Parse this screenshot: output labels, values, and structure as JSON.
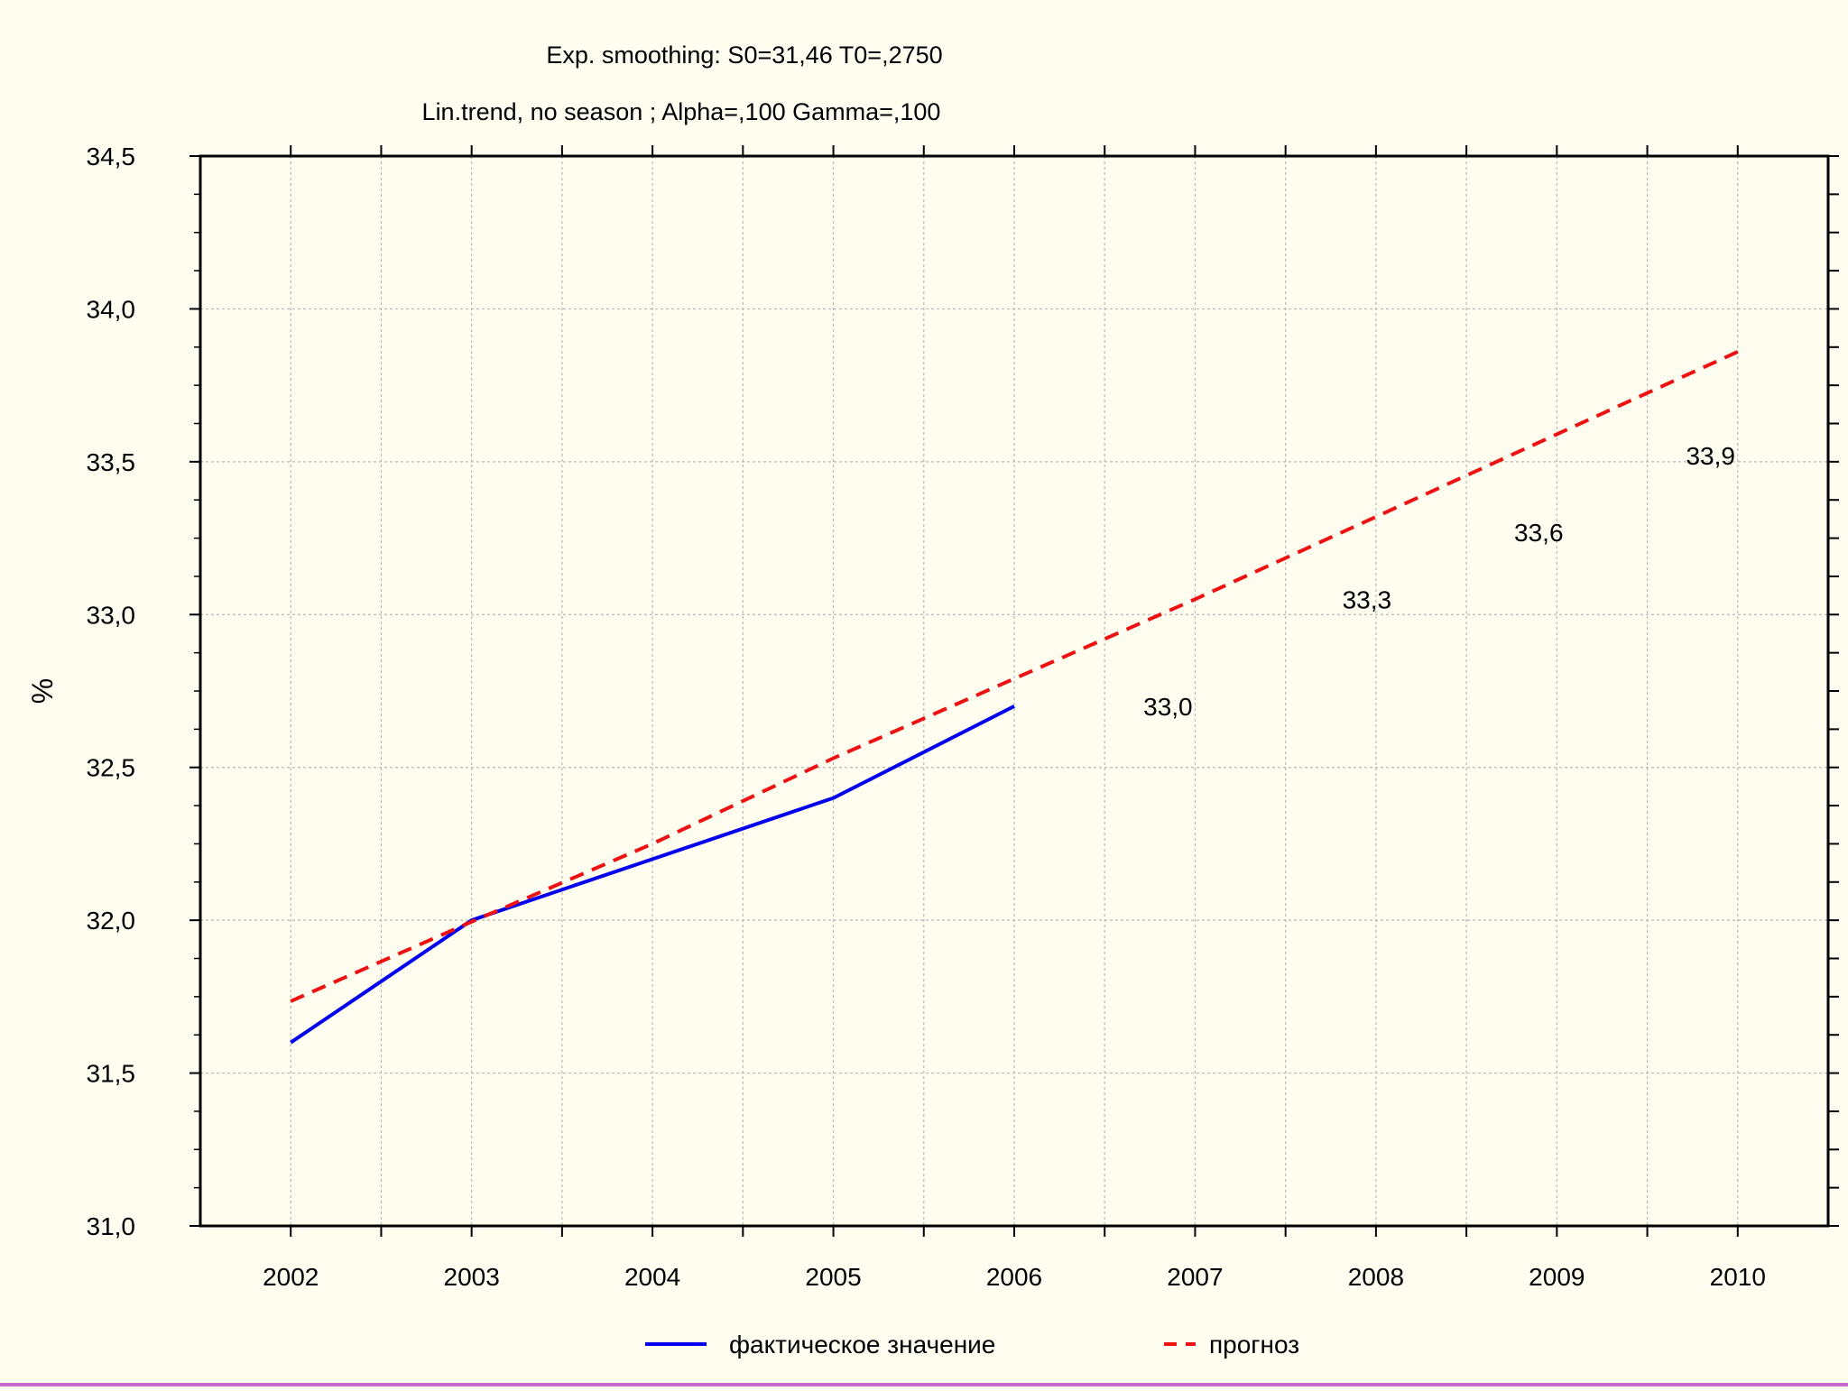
{
  "chart_data": {
    "type": "line",
    "title_lines": [
      "Exp. smoothing:  S0=31,46 T0=,2750",
      "Lin.trend, no season    ; Alpha=,100 Gamma=,100"
    ],
    "xlabel": "",
    "ylabel": "%",
    "x": [
      2002,
      2003,
      2004,
      2005,
      2006,
      2007,
      2008,
      2009,
      2010
    ],
    "x_tick_labels": [
      "2002",
      "2003",
      "2004",
      "2005",
      "2006",
      "2007",
      "2008",
      "2009",
      "2010"
    ],
    "xlim": [
      2001.5,
      2010.5
    ],
    "ylim": [
      31.0,
      34.5
    ],
    "y_tick_values": [
      31.0,
      31.5,
      32.0,
      32.5,
      33.0,
      33.5,
      34.0,
      34.5
    ],
    "y_tick_labels": [
      "31,0",
      "31,5",
      "32,0",
      "32,5",
      "33,0",
      "33,5",
      "34,0",
      "34,5"
    ],
    "grid": true,
    "legend_position": "bottom",
    "series": [
      {
        "name": "фактическое значение",
        "color": "#0000ee",
        "style": "solid",
        "x": [
          2002,
          2003,
          2004,
          2005,
          2006
        ],
        "values": [
          31.6,
          32.0,
          32.2,
          32.4,
          32.7
        ]
      },
      {
        "name": "прогноз",
        "color": "#ee1111",
        "style": "dashed",
        "x": [
          2002,
          2003,
          2004,
          2005,
          2006,
          2007,
          2008,
          2009,
          2010
        ],
        "values": [
          31.735,
          31.995,
          32.25,
          32.53,
          32.79,
          33.05,
          33.32,
          33.59,
          33.86
        ]
      }
    ],
    "annotations": [
      {
        "text": "33,0",
        "x": 2006.85,
        "y": 32.7
      },
      {
        "text": "33,3",
        "x": 2007.95,
        "y": 33.05
      },
      {
        "text": "33,6",
        "x": 2008.9,
        "y": 33.27
      },
      {
        "text": "33,9",
        "x": 2009.85,
        "y": 33.52
      }
    ]
  }
}
